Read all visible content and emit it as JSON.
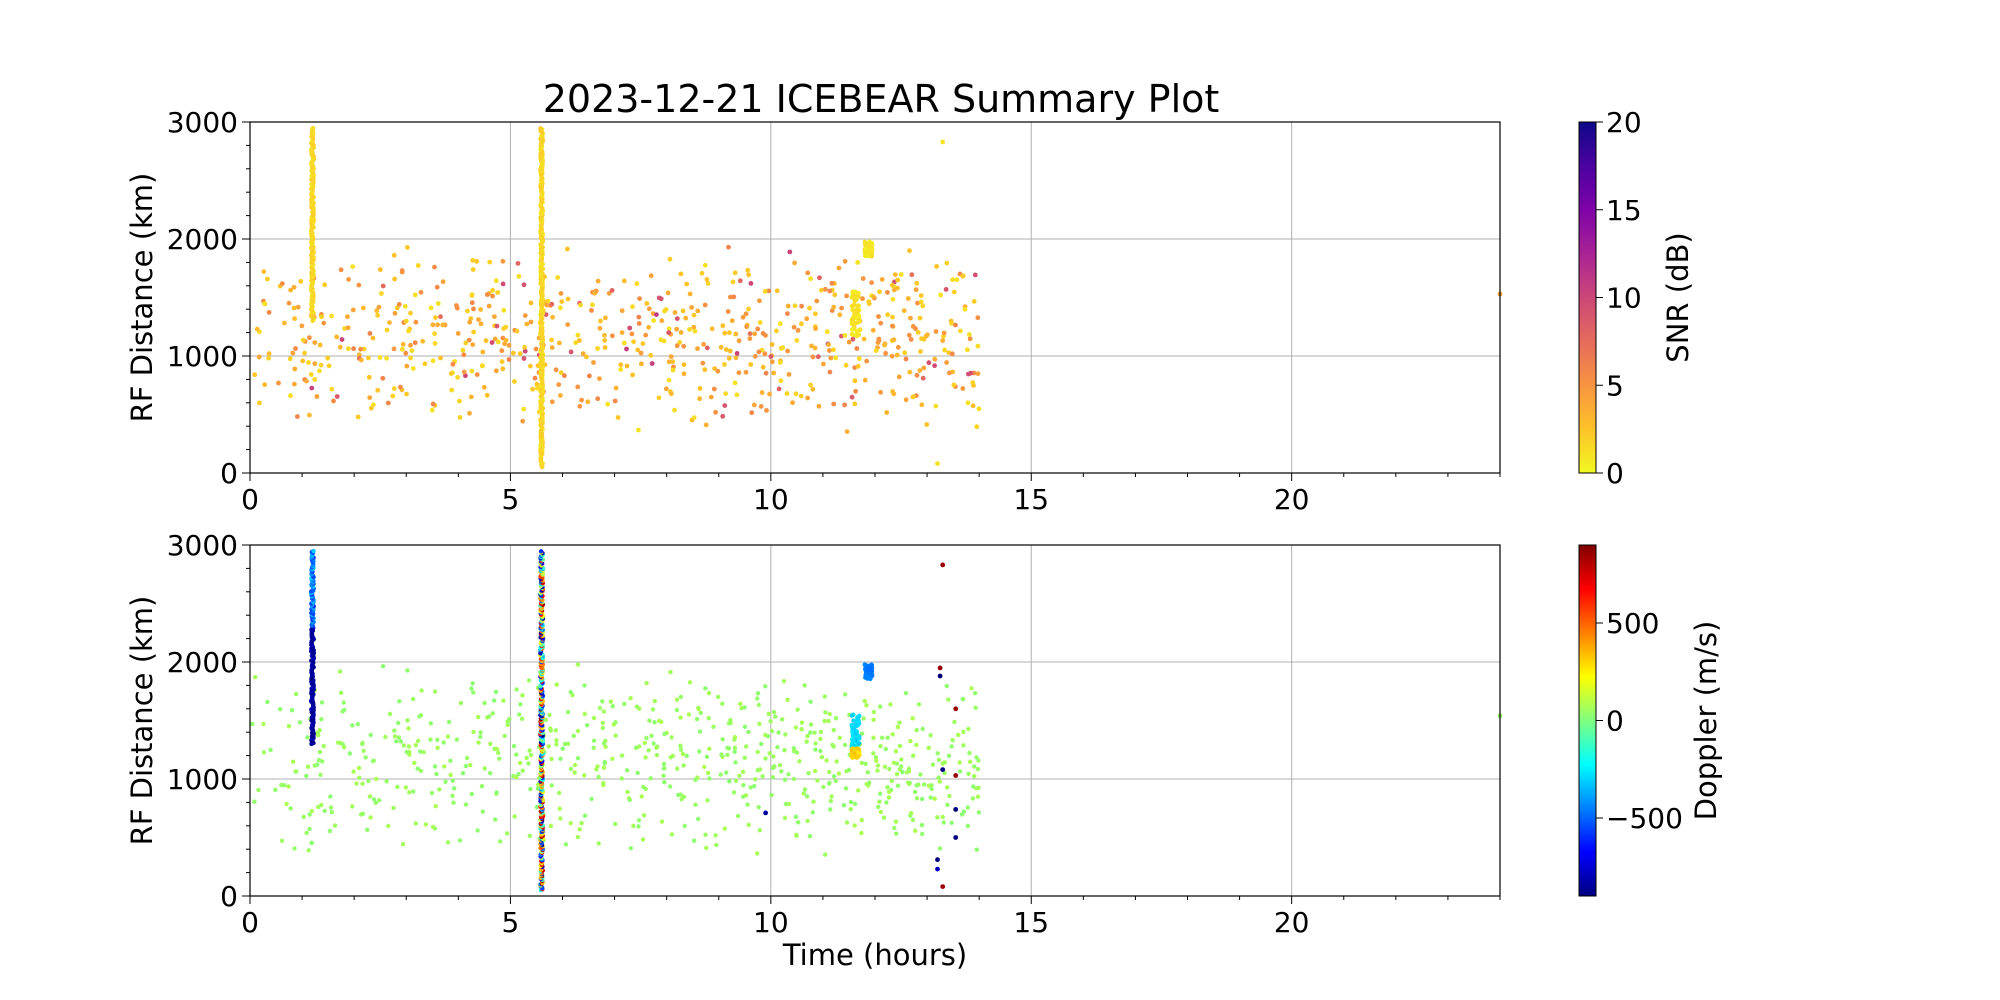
{
  "figure_title": "2023-12-21 ICEBEAR Summary Plot",
  "chart_data": [
    {
      "type": "scatter",
      "title": "2023-12-21 ICEBEAR Summary Plot",
      "xlabel": "",
      "ylabel": "RF Distance (km)",
      "xlim": [
        0,
        24
      ],
      "ylim": [
        0,
        3000
      ],
      "x_ticks": [
        "0",
        "5",
        "10",
        "15",
        "20"
      ],
      "y_ticks": [
        "0",
        "1000",
        "2000",
        "3000"
      ],
      "grid": true,
      "colorbar": {
        "label": "SNR (dB)",
        "range": [
          0,
          20
        ],
        "ticks": [
          "0",
          "5",
          "10",
          "15",
          "20"
        ],
        "colormap": "plasma_r",
        "colors": [
          "#f0f921",
          "#fdc328",
          "#f89441",
          "#e56b5d",
          "#cc4778",
          "#a92395",
          "#7e03a8",
          "#4c02a1",
          "#0d0887"
        ]
      },
      "dense_bands": [
        {
          "x": 1.2,
          "y_range": [
            1300,
            2950
          ],
          "snr_db": 1
        },
        {
          "x": 5.6,
          "y_range": [
            50,
            2950
          ],
          "snr_db": 1
        }
      ],
      "clusters": [
        {
          "x_range": [
            11.55,
            11.7
          ],
          "y_range": [
            1150,
            1550
          ],
          "snr_db": 1
        },
        {
          "x_range": [
            11.8,
            11.95
          ],
          "y_range": [
            1850,
            1980
          ],
          "snr_db": 1
        }
      ],
      "scatter_region": {
        "x_range": [
          0,
          14
        ],
        "y_range": [
          300,
          2000
        ],
        "snr_range_db": [
          0,
          12
        ]
      },
      "points": [
        {
          "x": 13.3,
          "y": 2830,
          "snr_db": 1
        },
        {
          "x": 13.2,
          "y": 80,
          "snr_db": 1
        },
        {
          "x": 24.0,
          "y": 1530,
          "snr_db": 4
        }
      ]
    },
    {
      "type": "scatter",
      "title": "",
      "xlabel": "Time (hours)",
      "ylabel": "RF Distance (km)",
      "xlim": [
        0,
        24
      ],
      "ylim": [
        0,
        3000
      ],
      "x_ticks": [
        "0",
        "5",
        "10",
        "15",
        "20"
      ],
      "y_ticks": [
        "0",
        "1000",
        "2000",
        "3000"
      ],
      "grid": true,
      "colorbar": {
        "label": "Doppler (m/s)",
        "range": [
          -900,
          900
        ],
        "ticks": [
          "−500",
          "0",
          "500"
        ],
        "tick_values": [
          -500,
          0,
          500
        ],
        "colormap": "jet_r",
        "colors": [
          "#00007f",
          "#0000ff",
          "#007fff",
          "#00ffff",
          "#7fff7f",
          "#ffff00",
          "#ff7f00",
          "#ff0000",
          "#7f0000"
        ]
      },
      "dense_bands": [
        {
          "x": 1.2,
          "y_range": [
            1300,
            2950
          ],
          "doppler_ms": -800
        },
        {
          "x": 5.6,
          "y_range": [
            50,
            2950
          ],
          "doppler_ms": "mixed"
        }
      ],
      "clusters": [
        {
          "x_range": [
            11.55,
            11.7
          ],
          "y_range": [
            1250,
            1550
          ],
          "doppler_ms": -300
        },
        {
          "x_range": [
            11.55,
            11.7
          ],
          "y_range": [
            1180,
            1260
          ],
          "doppler_ms": 300
        },
        {
          "x_range": [
            11.8,
            11.95
          ],
          "y_range": [
            1850,
            1980
          ],
          "doppler_ms": -450
        }
      ],
      "scatter_region": {
        "x_range": [
          0,
          14
        ],
        "y_range": [
          300,
          2000
        ],
        "doppler_ms": 50
      },
      "points": [
        {
          "x": 13.3,
          "y": 2830,
          "doppler_ms": 850
        },
        {
          "x": 13.25,
          "y": 1950,
          "doppler_ms": 850
        },
        {
          "x": 13.25,
          "y": 1880,
          "doppler_ms": -900
        },
        {
          "x": 13.55,
          "y": 1600,
          "doppler_ms": 850
        },
        {
          "x": 13.3,
          "y": 1080,
          "doppler_ms": -900
        },
        {
          "x": 13.55,
          "y": 1030,
          "doppler_ms": 850
        },
        {
          "x": 13.55,
          "y": 740,
          "doppler_ms": -900
        },
        {
          "x": 13.55,
          "y": 500,
          "doppler_ms": -900
        },
        {
          "x": 13.2,
          "y": 310,
          "doppler_ms": -900
        },
        {
          "x": 13.2,
          "y": 230,
          "doppler_ms": -800
        },
        {
          "x": 13.3,
          "y": 80,
          "doppler_ms": 850
        },
        {
          "x": 9.9,
          "y": 710,
          "doppler_ms": -850
        },
        {
          "x": 24.0,
          "y": 1540,
          "doppler_ms": 50
        }
      ]
    }
  ]
}
